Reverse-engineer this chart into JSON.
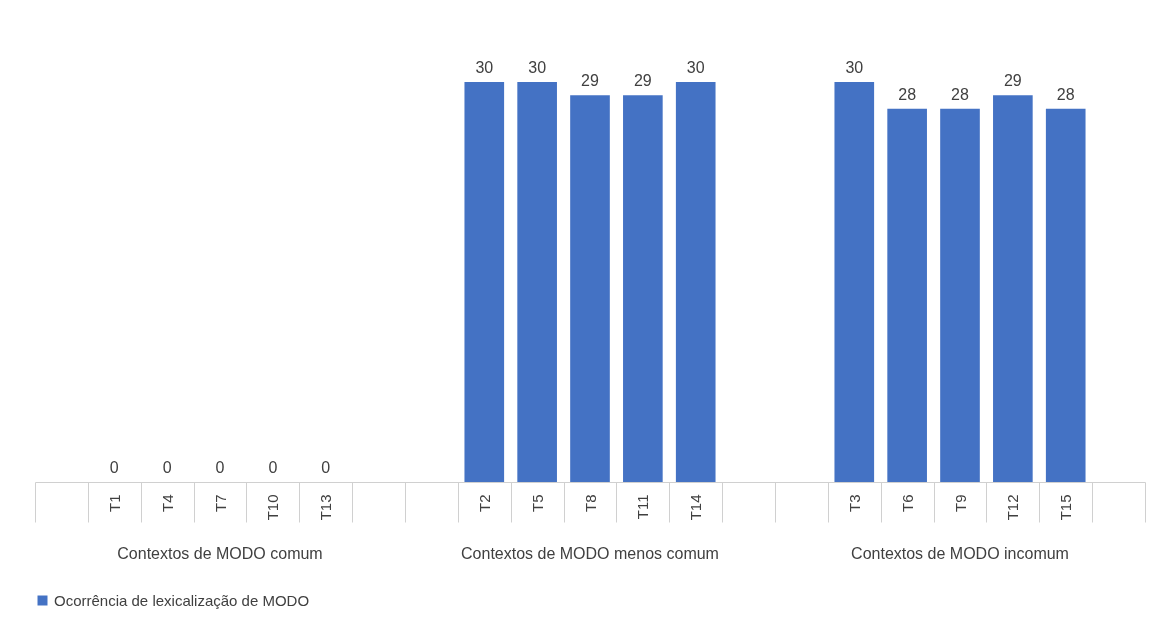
{
  "chart_data": {
    "type": "bar",
    "categories": [
      null,
      "T1",
      "T4",
      "T7",
      "T10",
      "T13",
      null,
      null,
      "T2",
      "T5",
      "T8",
      "T11",
      "T14",
      null,
      null,
      "T3",
      "T6",
      "T9",
      "T12",
      "T15",
      null
    ],
    "series": [
      {
        "name": "Ocorrência de lexicalização de MODO",
        "color": "#4472c4",
        "values": [
          null,
          0,
          0,
          0,
          0,
          0,
          null,
          null,
          30,
          30,
          29,
          29,
          30,
          null,
          null,
          30,
          28,
          28,
          29,
          28,
          null
        ]
      }
    ],
    "annotations": [
      "Contextos de MODO comum",
      "Contextos de MODO menos comum",
      "Contextos de MODO incomum"
    ],
    "data_labels": true,
    "legend": "bottom",
    "tick_labels": "x"
  }
}
